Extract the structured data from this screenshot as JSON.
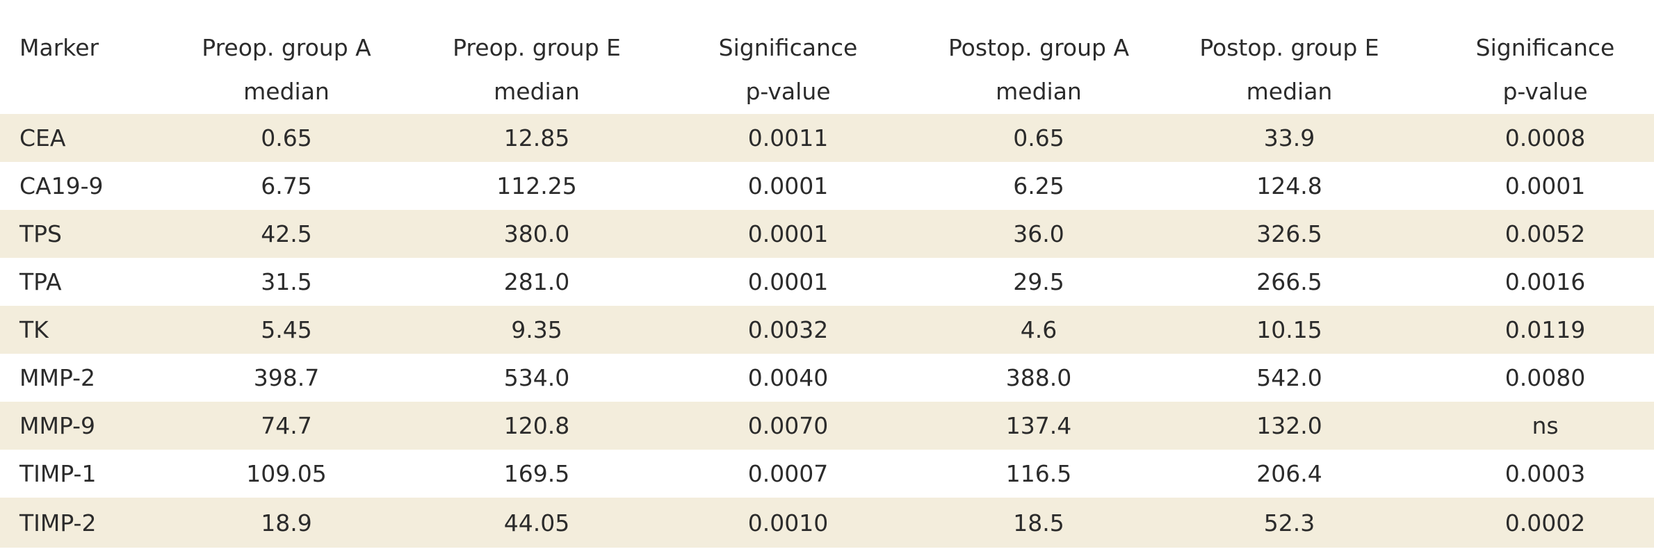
{
  "table": {
    "header_top": [
      "Marker",
      "Preop. group A",
      "Preop. group E",
      "Significance",
      "Postop. group A",
      "Postop. group E",
      "Significance"
    ],
    "header_bottom": [
      "",
      "median",
      "median",
      "p-value",
      "median",
      "median",
      "p-value"
    ],
    "rows": [
      [
        "CEA",
        "0.65",
        "12.85",
        "0.0011",
        "0.65",
        "33.9",
        "0.0008"
      ],
      [
        "CA19-9",
        "6.75",
        "112.25",
        "0.0001",
        "6.25",
        "124.8",
        "0.0001"
      ],
      [
        "TPS",
        "42.5",
        "380.0",
        "0.0001",
        "36.0",
        "326.5",
        "0.0052"
      ],
      [
        "TPA",
        "31.5",
        "281.0",
        "0.0001",
        "29.5",
        "266.5",
        "0.0016"
      ],
      [
        "TK",
        "5.45",
        "9.35",
        "0.0032",
        "4.6",
        "10.15",
        "0.0119"
      ],
      [
        "MMP-2",
        "398.7",
        "534.0",
        "0.0040",
        "388.0",
        "542.0",
        "0.0080"
      ],
      [
        "MMP-9",
        "74.7",
        "120.8",
        "0.0070",
        "137.4",
        "132.0",
        "ns"
      ],
      [
        "TIMP-1",
        "109.05",
        "169.5",
        "0.0007",
        "116.5",
        "206.4",
        "0.0003"
      ],
      [
        "TIMP-2",
        "18.9",
        "44.05",
        "0.0010",
        "18.5",
        "52.3",
        "0.0002"
      ]
    ]
  },
  "colors": {
    "stripe": "#f3eddc",
    "background": "#ffffff",
    "text": "#2b2b2b"
  }
}
